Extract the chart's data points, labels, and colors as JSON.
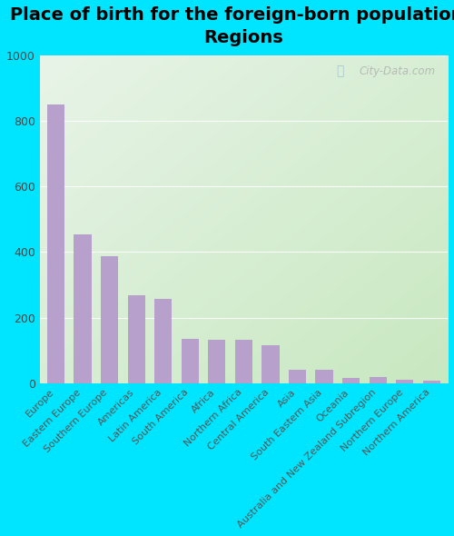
{
  "title": "Place of birth for the foreign-born population -\nRegions",
  "categories": [
    "Europe",
    "Eastern Europe",
    "Southern Europe",
    "Americas",
    "Latin America",
    "South America",
    "Africa",
    "Northern Africa",
    "Central America",
    "Asia",
    "South Eastern Asia",
    "Oceania",
    "Australia and New Zealand Subregion",
    "Northern Europe",
    "Northern America"
  ],
  "values": [
    850,
    455,
    388,
    268,
    258,
    135,
    133,
    133,
    115,
    42,
    40,
    15,
    18,
    10,
    8
  ],
  "bar_color": "#b8a0cc",
  "background_color": "#00e5ff",
  "plot_bg_topleft": "#e8f4e8",
  "plot_bg_bottomright": "#c8e8c0",
  "ylim": [
    0,
    1000
  ],
  "yticks": [
    0,
    200,
    400,
    600,
    800,
    1000
  ],
  "title_fontsize": 14,
  "tick_label_fontsize": 8,
  "ytick_fontsize": 9,
  "watermark": "City-Data.com",
  "grid_color": "#d0e8d0",
  "grid_linewidth": 0.8
}
